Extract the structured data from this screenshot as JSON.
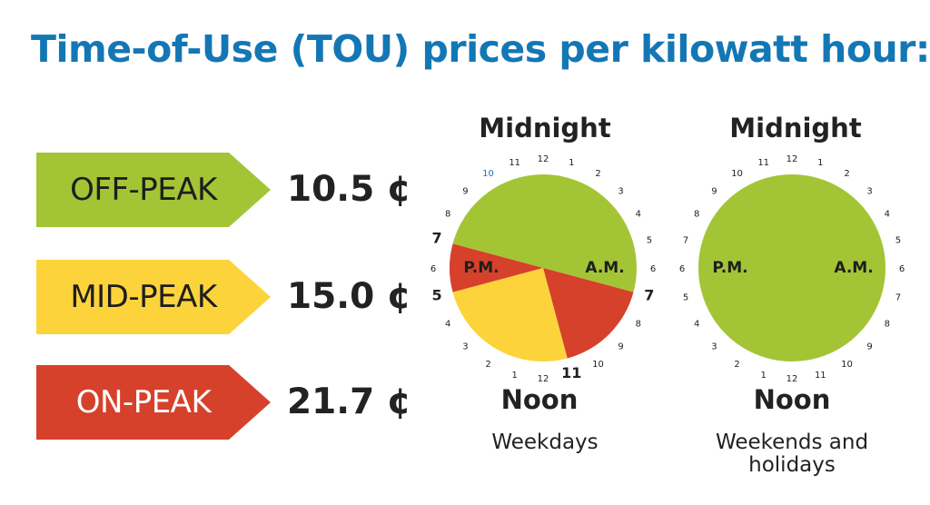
{
  "title": "Time-of-Use (TOU) prices per kilowatt hour:",
  "colors": {
    "title": "#1477b5",
    "off_peak": "#a3c535",
    "mid_peak": "#fdd33c",
    "on_peak": "#d6412b",
    "text": "#222222",
    "clock_num_blue": "#1477b5"
  },
  "tiers": [
    {
      "label": "OFF-PEAK",
      "price": "10.5 ¢",
      "color": "#a3c535",
      "text_color": "#1e1e1e"
    },
    {
      "label": "MID-PEAK",
      "price": "15.0 ¢",
      "color": "#fdd33c",
      "text_color": "#1e1e1e"
    },
    {
      "label": "ON-PEAK",
      "price": "21.7 ¢",
      "color": "#d6412b",
      "text_color": "#ffffff"
    }
  ],
  "clocks": [
    {
      "top_label": "Midnight",
      "bottom_label": "Noon",
      "left_label": "P.M.",
      "right_label": "A.M.",
      "caption": "Weekdays",
      "caption_line2": "",
      "numbers_right": [
        "1",
        "2",
        "3",
        "4",
        "5",
        "6",
        "7",
        "8",
        "9",
        "10",
        "11"
      ],
      "numbers_left": [
        "1",
        "2",
        "3",
        "4",
        "5",
        "6",
        "7",
        "8",
        "9",
        "10",
        "11"
      ],
      "top_number": "12",
      "bottom_number": "12",
      "segments": [
        {
          "from_hour": 19,
          "to_hour": 7,
          "tier": "off_peak",
          "color": "#a3c535"
        },
        {
          "from_hour": 7,
          "to_hour": 11,
          "tier": "on_peak",
          "color": "#d6412b"
        },
        {
          "from_hour": 11,
          "to_hour": 17,
          "tier": "mid_peak",
          "color": "#fdd33c"
        },
        {
          "from_hour": 17,
          "to_hour": 19,
          "tier": "on_peak",
          "color": "#d6412b"
        }
      ],
      "emphasized_hours": [
        "7 A.M.",
        "11 A.M.",
        "5 P.M.",
        "7 P.M."
      ]
    },
    {
      "top_label": "Midnight",
      "bottom_label": "Noon",
      "left_label": "P.M.",
      "right_label": "A.M.",
      "caption": "Weekends and",
      "caption_line2": "holidays",
      "top_number": "12",
      "bottom_number": "12",
      "segments": [
        {
          "from_hour": 0,
          "to_hour": 24,
          "tier": "off_peak",
          "color": "#a3c535"
        }
      ]
    }
  ]
}
